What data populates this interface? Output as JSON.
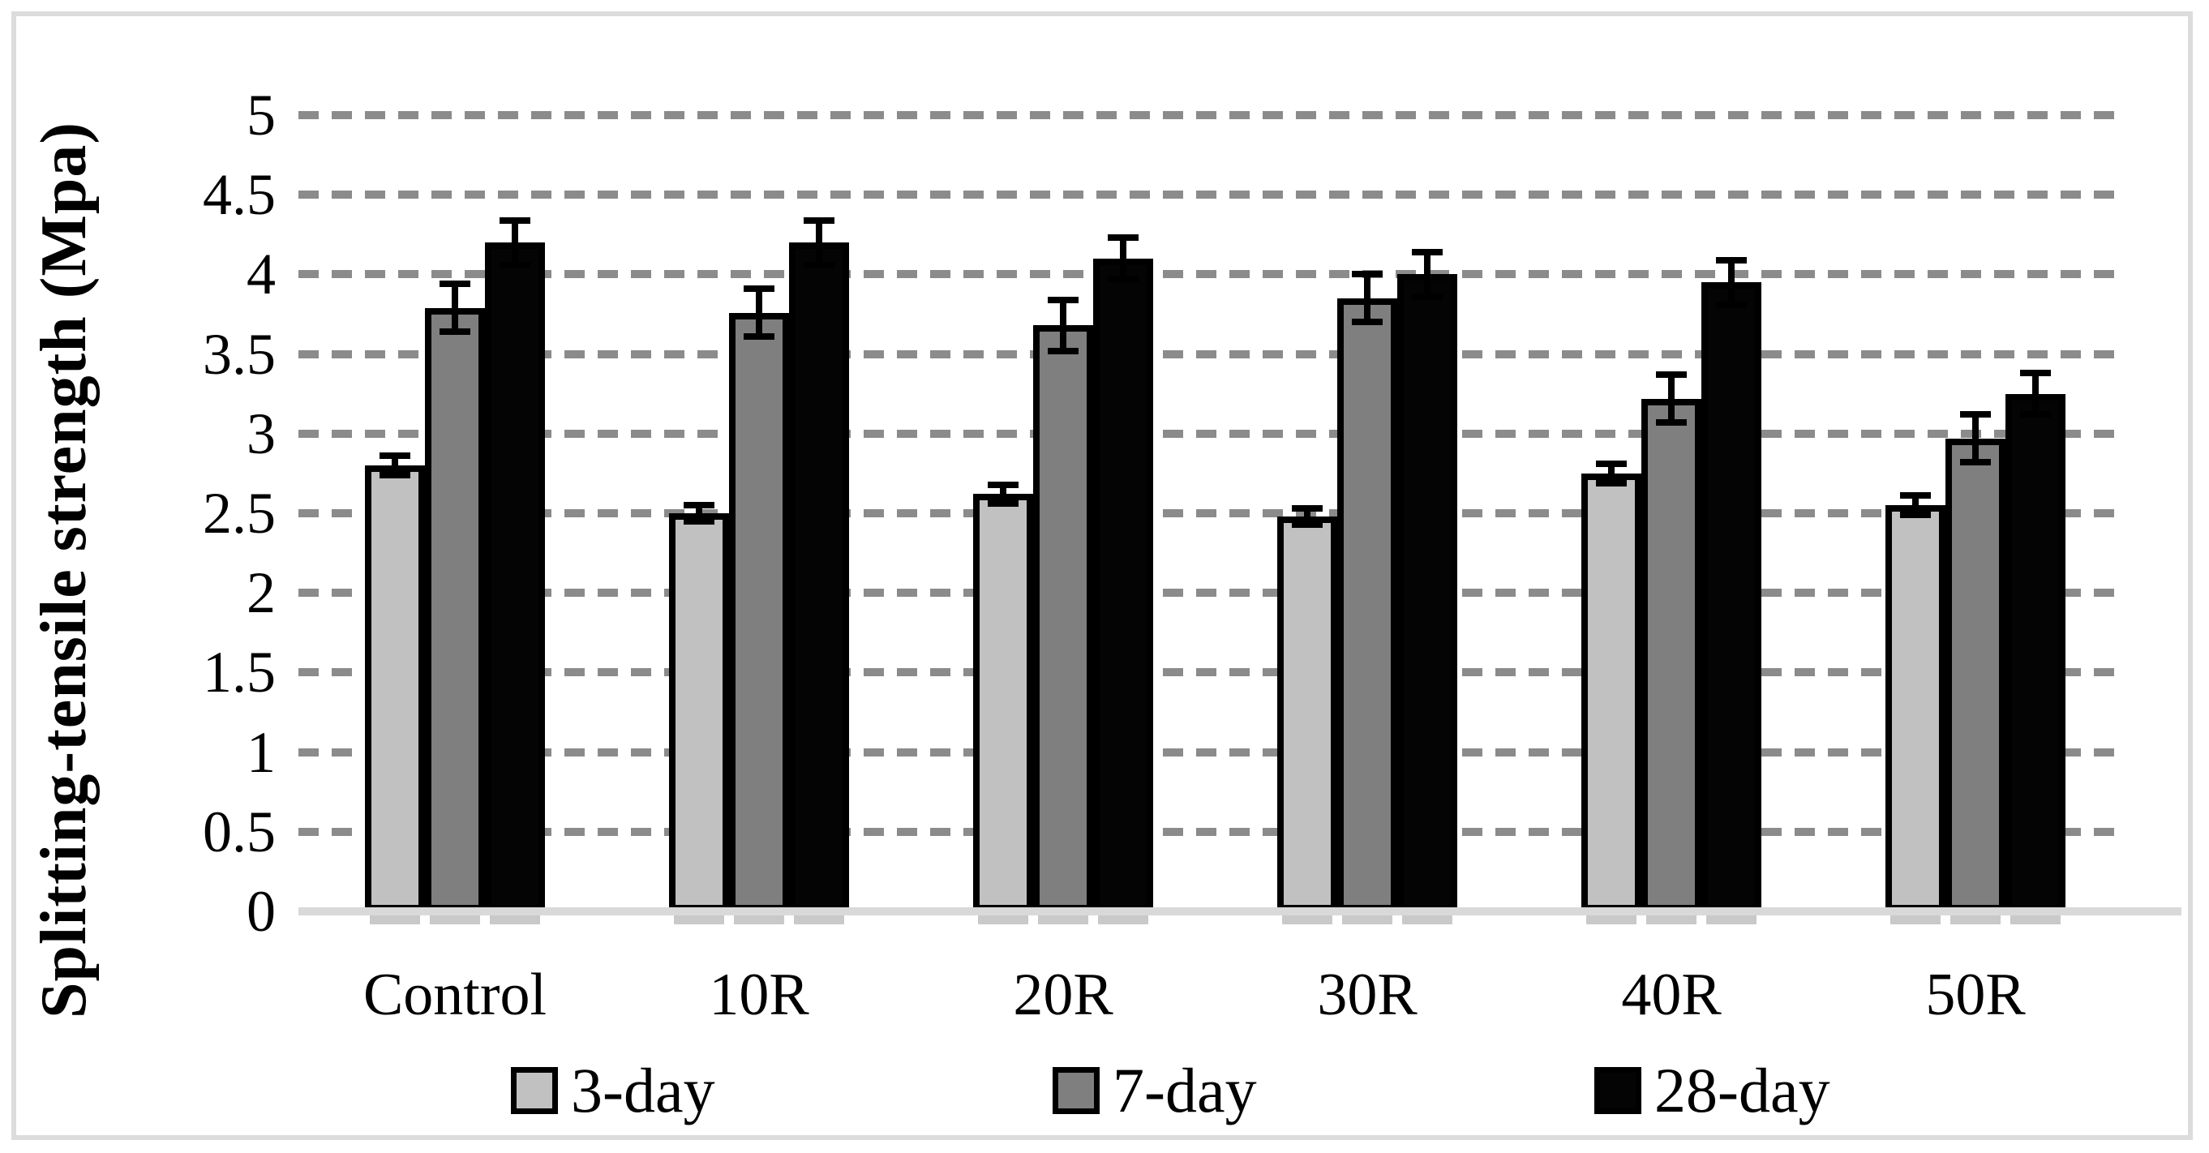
{
  "figure": {
    "background_color": "#ffffff",
    "frame_color": "#dcdcdc",
    "gridline_color": "#8b8b8b",
    "axis_line_color": "#d9d9d9"
  },
  "chart_data": {
    "type": "bar",
    "title": "",
    "xlabel": "",
    "ylabel": "Splitting-tensile strength (Mpa)",
    "ylim": [
      0,
      5
    ],
    "ytick_step": 0.5,
    "yticks": [
      "0",
      "0.5",
      "1",
      "1.5",
      "2",
      "2.5",
      "3",
      "3.5",
      "4",
      "4.5",
      "5"
    ],
    "grid": "horizontal dashed",
    "legend_position": "bottom",
    "error_bars": true,
    "categories": [
      "Control",
      "10R",
      "20R",
      "30R",
      "40R",
      "50R"
    ],
    "series": [
      {
        "name": "3-day",
        "color": "#c1c1c1",
        "values": [
          2.8,
          2.5,
          2.62,
          2.48,
          2.75,
          2.55
        ],
        "errors": [
          0.06,
          0.05,
          0.06,
          0.05,
          0.06,
          0.06
        ]
      },
      {
        "name": "7-day",
        "color": "#7f7f7f",
        "values": [
          3.79,
          3.76,
          3.68,
          3.85,
          3.22,
          2.97
        ],
        "errors": [
          0.15,
          0.15,
          0.16,
          0.15,
          0.15,
          0.15
        ]
      },
      {
        "name": "28-day",
        "color": "#040404",
        "values": [
          4.2,
          4.2,
          4.1,
          4.0,
          3.95,
          3.25
        ],
        "errors": [
          0.14,
          0.14,
          0.13,
          0.14,
          0.14,
          0.13
        ]
      }
    ]
  }
}
